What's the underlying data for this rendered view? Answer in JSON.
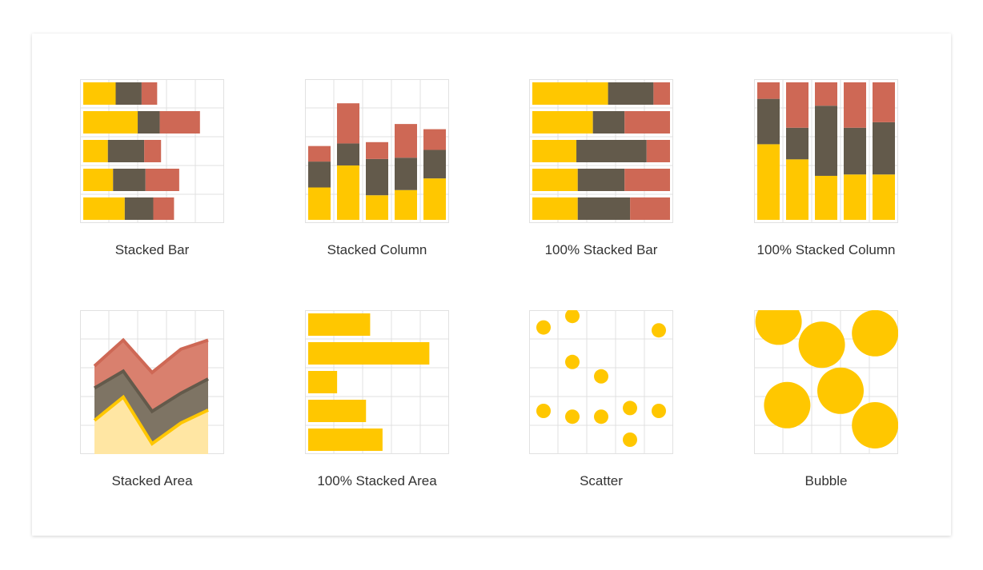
{
  "colors": {
    "yellow": "#FFC700",
    "brown": "#635A4B",
    "red": "#CE6855",
    "grid": "#E1E1E1",
    "area_yellow": "#FFE6A3",
    "area_brown": "#7E7464",
    "area_red": "#D9806E"
  },
  "gallery": {
    "items": [
      {
        "label": "Stacked Bar",
        "icon": "stacked-bar-chart-icon"
      },
      {
        "label": "Stacked Column",
        "icon": "stacked-column-chart-icon"
      },
      {
        "label": "100% Stacked Bar",
        "icon": "percent-stacked-bar-chart-icon"
      },
      {
        "label": "100% Stacked Column",
        "icon": "percent-stacked-column-chart-icon"
      },
      {
        "label": "Stacked Area",
        "icon": "stacked-area-chart-icon"
      },
      {
        "label": "100% Stacked Area",
        "icon": "percent-stacked-area-chart-icon"
      },
      {
        "label": "Scatter",
        "icon": "scatter-chart-icon"
      },
      {
        "label": "Bubble",
        "icon": "bubble-chart-icon"
      }
    ]
  },
  "chart_data": [
    {
      "type": "bar",
      "orientation": "horizontal",
      "stacked": true,
      "title": "",
      "series": [
        {
          "values": [
            25,
            42,
            19,
            23,
            32
          ]
        },
        {
          "values": [
            20,
            17,
            28,
            25,
            22
          ]
        },
        {
          "values": [
            12,
            31,
            13,
            26,
            16
          ]
        }
      ]
    },
    {
      "type": "bar",
      "orientation": "vertical",
      "stacked": true,
      "title": "",
      "series": [
        {
          "values": [
            25,
            42,
            19,
            23,
            32
          ]
        },
        {
          "values": [
            20,
            17,
            28,
            25,
            22
          ]
        },
        {
          "values": [
            12,
            31,
            13,
            26,
            16
          ]
        }
      ]
    },
    {
      "type": "bar",
      "orientation": "horizontal",
      "stacked": true,
      "normalized": true,
      "title": "",
      "series": [
        {
          "values": [
            55,
            44,
            32,
            33,
            33
          ]
        },
        {
          "values": [
            33,
            23,
            51,
            34,
            38
          ]
        },
        {
          "values": [
            12,
            33,
            17,
            33,
            29
          ]
        }
      ]
    },
    {
      "type": "bar",
      "orientation": "vertical",
      "stacked": true,
      "normalized": true,
      "title": "",
      "series": [
        {
          "values": [
            55,
            44,
            32,
            33,
            33
          ]
        },
        {
          "values": [
            33,
            23,
            51,
            34,
            38
          ]
        },
        {
          "values": [
            12,
            33,
            17,
            33,
            29
          ]
        }
      ]
    },
    {
      "type": "area",
      "stacked": true,
      "title": "",
      "series": [
        {
          "values": [
            26,
            44,
            8,
            24,
            34
          ]
        },
        {
          "values": [
            25,
            20,
            25,
            23,
            24
          ]
        },
        {
          "values": [
            17,
            24,
            30,
            34,
            30
          ]
        }
      ]
    },
    {
      "type": "bar",
      "orientation": "horizontal",
      "title": "",
      "series": [
        {
          "values": [
            45,
            88,
            21,
            42,
            54
          ]
        }
      ]
    },
    {
      "type": "scatter",
      "title": "",
      "points": [
        [
          0.5,
          4.4
        ],
        [
          1.5,
          4.8
        ],
        [
          4.5,
          4.3
        ],
        [
          1.5,
          3.2
        ],
        [
          2.5,
          2.7
        ],
        [
          0.5,
          1.5
        ],
        [
          1.5,
          1.3
        ],
        [
          2.5,
          1.3
        ],
        [
          3.5,
          1.6
        ],
        [
          4.5,
          1.5
        ],
        [
          3.5,
          0.5
        ]
      ]
    },
    {
      "type": "bubble",
      "title": "",
      "points": [
        [
          0.85,
          4.6,
          1.5
        ],
        [
          2.35,
          3.8,
          1.5
        ],
        [
          4.2,
          4.2,
          1.5
        ],
        [
          1.15,
          1.7,
          1.5
        ],
        [
          3.0,
          2.2,
          1.5
        ],
        [
          4.2,
          1.0,
          1.5
        ]
      ]
    }
  ]
}
